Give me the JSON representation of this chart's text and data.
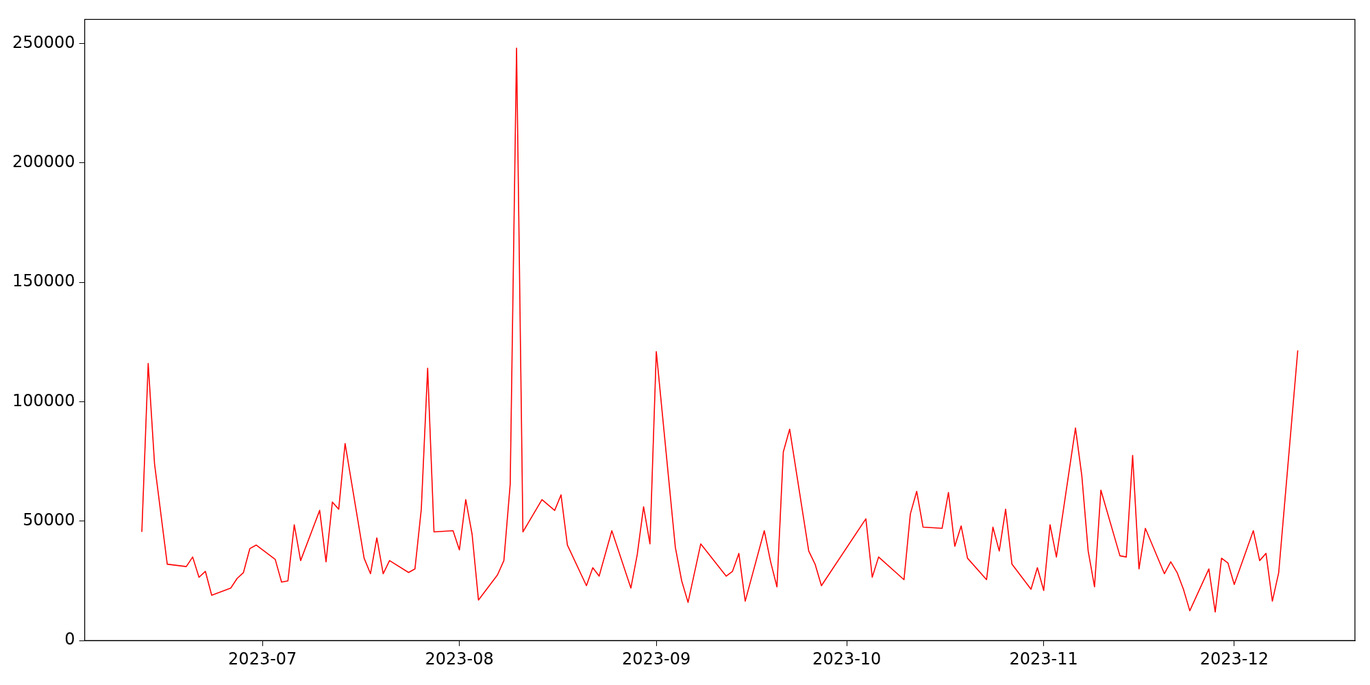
{
  "chart_data": {
    "type": "line",
    "x": [
      "2023-06-12",
      "2023-06-13",
      "2023-06-14",
      "2023-06-16",
      "2023-06-19",
      "2023-06-20",
      "2023-06-21",
      "2023-06-22",
      "2023-06-23",
      "2023-06-26",
      "2023-06-27",
      "2023-06-28",
      "2023-06-29",
      "2023-06-30",
      "2023-07-03",
      "2023-07-04",
      "2023-07-05",
      "2023-07-06",
      "2023-07-07",
      "2023-07-10",
      "2023-07-11",
      "2023-07-12",
      "2023-07-13",
      "2023-07-14",
      "2023-07-17",
      "2023-07-18",
      "2023-07-19",
      "2023-07-20",
      "2023-07-21",
      "2023-07-24",
      "2023-07-25",
      "2023-07-26",
      "2023-07-27",
      "2023-07-28",
      "2023-07-31",
      "2023-08-01",
      "2023-08-02",
      "2023-08-03",
      "2023-08-04",
      "2023-08-07",
      "2023-08-08",
      "2023-08-09",
      "2023-08-10",
      "2023-08-11",
      "2023-08-14",
      "2023-08-16",
      "2023-08-17",
      "2023-08-18",
      "2023-08-21",
      "2023-08-22",
      "2023-08-23",
      "2023-08-25",
      "2023-08-28",
      "2023-08-29",
      "2023-08-30",
      "2023-08-31",
      "2023-09-01",
      "2023-09-04",
      "2023-09-05",
      "2023-09-06",
      "2023-09-08",
      "2023-09-12",
      "2023-09-13",
      "2023-09-14",
      "2023-09-15",
      "2023-09-18",
      "2023-09-19",
      "2023-09-20",
      "2023-09-21",
      "2023-09-22",
      "2023-09-25",
      "2023-09-26",
      "2023-09-27",
      "2023-10-04",
      "2023-10-05",
      "2023-10-06",
      "2023-10-10",
      "2023-10-11",
      "2023-10-12",
      "2023-10-13",
      "2023-10-16",
      "2023-10-17",
      "2023-10-18",
      "2023-10-19",
      "2023-10-20",
      "2023-10-23",
      "2023-10-24",
      "2023-10-25",
      "2023-10-26",
      "2023-10-27",
      "2023-10-30",
      "2023-10-31",
      "2023-11-01",
      "2023-11-02",
      "2023-11-03",
      "2023-11-06",
      "2023-11-07",
      "2023-11-08",
      "2023-11-09",
      "2023-11-10",
      "2023-11-13",
      "2023-11-14",
      "2023-11-15",
      "2023-11-16",
      "2023-11-17",
      "2023-11-20",
      "2023-11-21",
      "2023-11-22",
      "2023-11-23",
      "2023-11-24",
      "2023-11-27",
      "2023-11-28",
      "2023-11-29",
      "2023-11-30",
      "2023-12-01",
      "2023-12-04",
      "2023-12-05",
      "2023-12-06",
      "2023-12-07",
      "2023-12-08",
      "2023-12-11"
    ],
    "series": [
      {
        "color": "#ff0000",
        "values": [
          45500,
          116000,
          74000,
          32000,
          31000,
          35000,
          26500,
          29000,
          19000,
          22000,
          26000,
          28500,
          38500,
          40000,
          34000,
          24500,
          25000,
          48500,
          33500,
          54500,
          33000,
          58000,
          55000,
          82500,
          34500,
          28000,
          43000,
          28000,
          33500,
          28500,
          30000,
          55000,
          114000,
          45500,
          46000,
          38000,
          59000,
          44500,
          17000,
          27500,
          33500,
          65500,
          248000,
          45500,
          59000,
          54500,
          61000,
          40000,
          23000,
          30500,
          27000,
          46000,
          22000,
          36000,
          56000,
          40500,
          121000,
          39000,
          25000,
          16000,
          40500,
          27000,
          29000,
          36500,
          16500,
          46000,
          33000,
          22500,
          79000,
          88500,
          37500,
          32000,
          23000,
          51000,
          26500,
          35000,
          25500,
          53000,
          62500,
          47500,
          47000,
          62000,
          39500,
          48000,
          34500,
          25500,
          47500,
          37500,
          55000,
          32000,
          21500,
          30500,
          21000,
          48500,
          35000,
          89000,
          69000,
          37500,
          22500,
          63000,
          35500,
          35000,
          77500,
          30000,
          47000,
          28000,
          33000,
          28500,
          21500,
          12500,
          30000,
          12000,
          34500,
          32500,
          23500,
          46000,
          33500,
          36500,
          16500,
          28500,
          121500
        ]
      }
    ],
    "xlim": [
      "2023-06-03",
      "2023-12-20"
    ],
    "xticks": [
      {
        "value": "2023-07-01",
        "label": "2023-07"
      },
      {
        "value": "2023-08-01",
        "label": "2023-08"
      },
      {
        "value": "2023-09-01",
        "label": "2023-09"
      },
      {
        "value": "2023-10-01",
        "label": "2023-10"
      },
      {
        "value": "2023-11-01",
        "label": "2023-11"
      },
      {
        "value": "2023-12-01",
        "label": "2023-12"
      }
    ],
    "ylim": [
      0,
      260000
    ],
    "yticks": [
      0,
      50000,
      100000,
      150000,
      200000,
      250000
    ],
    "grid": false,
    "legend": false,
    "marker": "none",
    "line_style": "solid"
  }
}
